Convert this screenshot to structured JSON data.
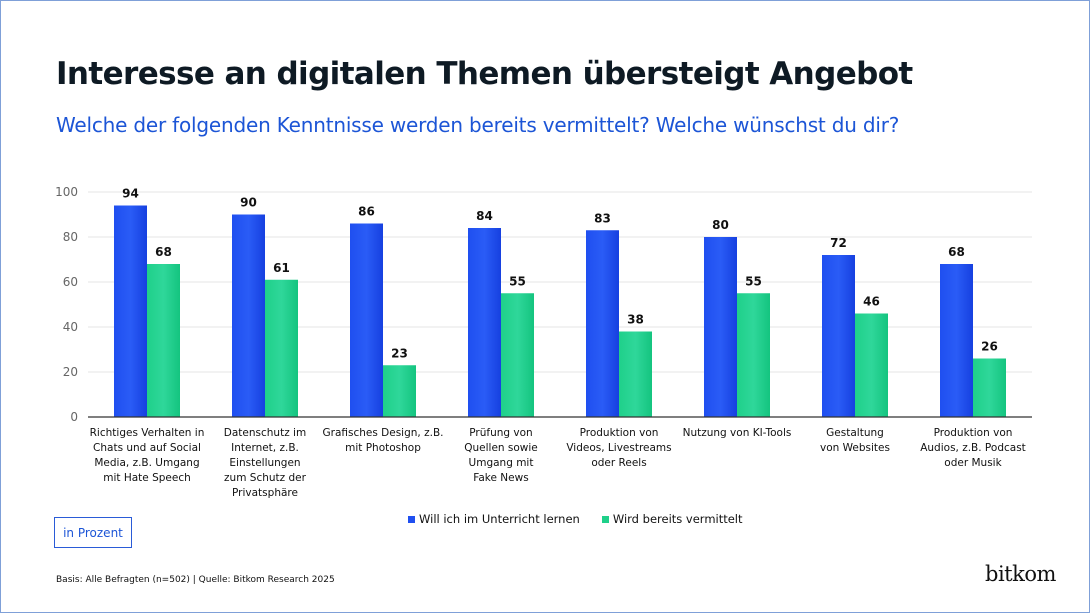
{
  "header": {
    "title": "Interesse an digitalen Themen übersteigt Angebot",
    "subtitle": "Welche der folgenden Kenntnisse werden bereits vermittelt? Welche wünschst du dir?"
  },
  "chart_data": {
    "type": "bar",
    "title": "Interesse an digitalen Themen übersteigt Angebot",
    "subtitle": "Welche der folgenden Kenntnisse werden bereits vermittelt? Welche wünschst du dir?",
    "xlabel": "",
    "ylabel": "in Prozent",
    "ylim": [
      0,
      100
    ],
    "yticks": [
      0,
      20,
      40,
      60,
      80,
      100
    ],
    "grid": true,
    "legend_position": "bottom-center",
    "categories": [
      [
        "Richtiges Verhalten in",
        "Chats und auf Social",
        "Media, z.B. Umgang",
        "mit Hate Speech"
      ],
      [
        "Datenschutz im",
        "Internet, z.B.",
        "Einstellungen",
        "zum Schutz der",
        "Privatsphäre"
      ],
      [
        "Grafisches Design, z.B.",
        "mit Photoshop"
      ],
      [
        "Prüfung von",
        "Quellen sowie",
        "Umgang  mit",
        "Fake News"
      ],
      [
        "Produktion von",
        "Videos, Livestreams",
        "oder Reels"
      ],
      [
        "Nutzung von KI-Tools"
      ],
      [
        "Gestaltung",
        "von Websites"
      ],
      [
        "Produktion von",
        "Audios, z.B. Podcast",
        "oder Musik"
      ]
    ],
    "series": [
      {
        "name": "Will ich im Unterricht lernen",
        "color": "#1f4ff0",
        "values": [
          94,
          90,
          86,
          84,
          83,
          80,
          72,
          68
        ]
      },
      {
        "name": "Wird bereits vermittelt",
        "color": "#1fd08a",
        "values": [
          68,
          61,
          23,
          55,
          38,
          55,
          46,
          26
        ]
      }
    ]
  },
  "unit_label": "in Prozent",
  "legend": [
    {
      "label": "Will ich im Unterricht lernen",
      "color": "#1f4ff0"
    },
    {
      "label": "Wird bereits vermittelt",
      "color": "#1fd08a"
    }
  ],
  "footnote": "Basis: Alle Befragten (n=502) | Quelle: Bitkom Research 2025",
  "logo": "bitkom"
}
